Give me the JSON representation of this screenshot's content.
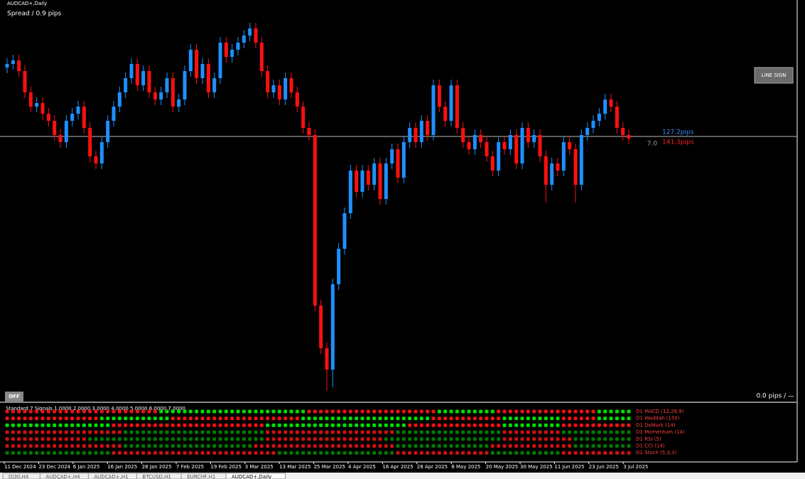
{
  "chart_data": {
    "type": "candlestick",
    "title": "AUDCAD+,Daily",
    "subtitle": "Spread / 0.9 pips",
    "ylim": [
      0.8435,
      0.9
    ],
    "up_color": "#1e90ff",
    "down_color": "#ff1010",
    "hline": 0.8808,
    "hline_labels": [
      "127.2pips",
      "7.0",
      "141.3pips"
    ],
    "button": "LINE SIGN",
    "off_button": "OFF",
    "pips_label": "0.0 pips / —",
    "dates": [
      "11 Dec 2024",
      "23 Dec 2024",
      "6 Jan 2025",
      "16 Jan 2025",
      "28 Jan 2025",
      "7 Feb 2025",
      "19 Feb 2025",
      "3 Mar 2025",
      "13 Mar 2025",
      "25 Mar 2025",
      "4 Apr 2025",
      "16 Apr 2025",
      "28 Apr 2025",
      "8 May 2025",
      "20 May 2025",
      "30 May 2025",
      "11 Jun 2025",
      "23 Jun 2025",
      "3 Jul 2025"
    ],
    "candles": [
      [
        0.8905,
        0.8918,
        0.8897,
        0.891
      ],
      [
        0.891,
        0.8923,
        0.8902,
        0.8915
      ],
      [
        0.8915,
        0.8923,
        0.8892,
        0.89
      ],
      [
        0.89,
        0.8908,
        0.8862,
        0.887
      ],
      [
        0.887,
        0.8878,
        0.8842,
        0.885
      ],
      [
        0.885,
        0.8863,
        0.8842,
        0.8855
      ],
      [
        0.8855,
        0.8863,
        0.8832,
        0.884
      ],
      [
        0.884,
        0.8848,
        0.8822,
        0.883
      ],
      [
        0.883,
        0.8838,
        0.8802,
        0.881
      ],
      [
        0.881,
        0.8818,
        0.8792,
        0.88
      ],
      [
        0.88,
        0.8838,
        0.8792,
        0.883
      ],
      [
        0.883,
        0.8848,
        0.8822,
        0.884
      ],
      [
        0.884,
        0.8858,
        0.8832,
        0.885
      ],
      [
        0.885,
        0.8858,
        0.8812,
        0.882
      ],
      [
        0.882,
        0.8828,
        0.8772,
        0.878
      ],
      [
        0.878,
        0.8788,
        0.8762,
        0.877
      ],
      [
        0.877,
        0.8808,
        0.8762,
        0.88
      ],
      [
        0.88,
        0.8838,
        0.8792,
        0.883
      ],
      [
        0.883,
        0.8858,
        0.8822,
        0.885
      ],
      [
        0.885,
        0.8878,
        0.8842,
        0.887
      ],
      [
        0.887,
        0.8898,
        0.8862,
        0.889
      ],
      [
        0.889,
        0.8918,
        0.8882,
        0.891
      ],
      [
        0.891,
        0.8918,
        0.8872,
        0.888
      ],
      [
        0.888,
        0.8908,
        0.8872,
        0.89
      ],
      [
        0.89,
        0.8908,
        0.8862,
        0.887
      ],
      [
        0.887,
        0.8878,
        0.8852,
        0.886
      ],
      [
        0.886,
        0.8878,
        0.8852,
        0.887
      ],
      [
        0.887,
        0.8898,
        0.8862,
        0.889
      ],
      [
        0.889,
        0.8898,
        0.8842,
        0.885
      ],
      [
        0.885,
        0.8868,
        0.8842,
        0.886
      ],
      [
        0.886,
        0.8908,
        0.8852,
        0.89
      ],
      [
        0.89,
        0.8938,
        0.8892,
        0.893
      ],
      [
        0.893,
        0.8938,
        0.8882,
        0.889
      ],
      [
        0.889,
        0.8918,
        0.8882,
        0.891
      ],
      [
        0.891,
        0.8918,
        0.8862,
        0.887
      ],
      [
        0.887,
        0.8898,
        0.8862,
        0.889
      ],
      [
        0.889,
        0.8948,
        0.8882,
        0.894
      ],
      [
        0.894,
        0.8948,
        0.8912,
        0.892
      ],
      [
        0.892,
        0.8938,
        0.8912,
        0.893
      ],
      [
        0.893,
        0.8948,
        0.8922,
        0.894
      ],
      [
        0.894,
        0.8958,
        0.8932,
        0.895
      ],
      [
        0.895,
        0.8968,
        0.8942,
        0.896
      ],
      [
        0.896,
        0.8968,
        0.8932,
        0.894
      ],
      [
        0.894,
        0.8948,
        0.8892,
        0.89
      ],
      [
        0.89,
        0.8908,
        0.8862,
        0.887
      ],
      [
        0.887,
        0.8888,
        0.8862,
        0.888
      ],
      [
        0.888,
        0.8888,
        0.8852,
        0.886
      ],
      [
        0.886,
        0.8898,
        0.8852,
        0.889
      ],
      [
        0.889,
        0.8898,
        0.8862,
        0.887
      ],
      [
        0.887,
        0.8878,
        0.8842,
        0.885
      ],
      [
        0.885,
        0.8858,
        0.8812,
        0.882
      ],
      [
        0.882,
        0.8828,
        0.8802,
        0.881
      ],
      [
        0.881,
        0.8818,
        0.8562,
        0.857
      ],
      [
        0.857,
        0.8578,
        0.8502,
        0.851
      ],
      [
        0.851,
        0.8518,
        0.845,
        0.848
      ],
      [
        0.848,
        0.8608,
        0.8455,
        0.86
      ],
      [
        0.86,
        0.8658,
        0.8592,
        0.865
      ],
      [
        0.865,
        0.8708,
        0.8642,
        0.87
      ],
      [
        0.87,
        0.8768,
        0.8692,
        0.876
      ],
      [
        0.876,
        0.8768,
        0.8722,
        0.873
      ],
      [
        0.873,
        0.8768,
        0.8722,
        0.876
      ],
      [
        0.876,
        0.8768,
        0.8732,
        0.874
      ],
      [
        0.874,
        0.8778,
        0.8732,
        0.877
      ],
      [
        0.877,
        0.8778,
        0.8712,
        0.872
      ],
      [
        0.872,
        0.8778,
        0.8712,
        0.877
      ],
      [
        0.877,
        0.8798,
        0.8762,
        0.879
      ],
      [
        0.879,
        0.8798,
        0.8742,
        0.875
      ],
      [
        0.875,
        0.8808,
        0.8742,
        0.88
      ],
      [
        0.88,
        0.8828,
        0.8792,
        0.882
      ],
      [
        0.882,
        0.8828,
        0.8792,
        0.88
      ],
      [
        0.88,
        0.8838,
        0.8792,
        0.883
      ],
      [
        0.883,
        0.8838,
        0.8802,
        0.881
      ],
      [
        0.881,
        0.8888,
        0.8802,
        0.888
      ],
      [
        0.888,
        0.8888,
        0.8842,
        0.885
      ],
      [
        0.885,
        0.8858,
        0.8822,
        0.883
      ],
      [
        0.883,
        0.8888,
        0.8822,
        0.888
      ],
      [
        0.888,
        0.8888,
        0.8812,
        0.882
      ],
      [
        0.882,
        0.8828,
        0.8792,
        0.88
      ],
      [
        0.88,
        0.8808,
        0.8782,
        0.879
      ],
      [
        0.879,
        0.8818,
        0.8782,
        0.881
      ],
      [
        0.881,
        0.8818,
        0.8792,
        0.88
      ],
      [
        0.88,
        0.8808,
        0.8772,
        0.878
      ],
      [
        0.878,
        0.8788,
        0.8752,
        0.876
      ],
      [
        0.876,
        0.8808,
        0.8752,
        0.88
      ],
      [
        0.88,
        0.8808,
        0.8782,
        0.879
      ],
      [
        0.879,
        0.8818,
        0.8782,
        0.881
      ],
      [
        0.881,
        0.8818,
        0.8762,
        0.877
      ],
      [
        0.877,
        0.8828,
        0.8762,
        0.882
      ],
      [
        0.882,
        0.8828,
        0.8792,
        0.88
      ],
      [
        0.88,
        0.8818,
        0.8792,
        0.881
      ],
      [
        0.881,
        0.8818,
        0.8772,
        0.878
      ],
      [
        0.878,
        0.8788,
        0.8715,
        0.874
      ],
      [
        0.874,
        0.8778,
        0.8732,
        0.877
      ],
      [
        0.877,
        0.8778,
        0.8752,
        0.876
      ],
      [
        0.876,
        0.8808,
        0.8752,
        0.88
      ],
      [
        0.88,
        0.8808,
        0.8782,
        0.879
      ],
      [
        0.879,
        0.8798,
        0.8715,
        0.874
      ],
      [
        0.874,
        0.8818,
        0.8732,
        0.881
      ],
      [
        0.881,
        0.8828,
        0.8802,
        0.882
      ],
      [
        0.882,
        0.8838,
        0.8812,
        0.883
      ],
      [
        0.883,
        0.8848,
        0.8822,
        0.884
      ],
      [
        0.884,
        0.8868,
        0.8832,
        0.886
      ],
      [
        0.886,
        0.8868,
        0.8842,
        0.885
      ],
      [
        0.885,
        0.8858,
        0.8812,
        0.882
      ],
      [
        0.882,
        0.8828,
        0.8802,
        0.881
      ],
      [
        0.881,
        0.8818,
        0.8797,
        0.8805
      ]
    ],
    "signals": {
      "title": "Standard 7 Signals 1.0000 2.0000 3.0000 4.0000 5.0000 6.0000 7.0000",
      "rows": [
        {
          "label": "D1 MACD (12,26,9)",
          "colors": [
            "#00e000",
            "#ee1111"
          ],
          "runs": [
            [
              1,
              26
            ],
            [
              0,
              25
            ],
            [
              1,
              22
            ],
            [
              0,
              10
            ],
            [
              1,
              17
            ],
            [
              0,
              6
            ]
          ]
        },
        {
          "label": "D1 Waddah (150)",
          "colors": [
            "#00e000",
            "#ee1111"
          ],
          "runs": [
            [
              1,
              16
            ],
            [
              0,
              12
            ],
            [
              1,
              22
            ],
            [
              0,
              22
            ],
            [
              1,
              12
            ],
            [
              0,
              10
            ],
            [
              1,
              6
            ],
            [
              0,
              6
            ]
          ]
        },
        {
          "label": "D1 DeMark (14)",
          "colors": [
            "#00e000",
            "#ee1111"
          ],
          "runs": [
            [
              0,
              18
            ],
            [
              1,
              26
            ],
            [
              0,
              24
            ],
            [
              1,
              16
            ],
            [
              0,
              10
            ],
            [
              1,
              12
            ]
          ]
        },
        {
          "label": "D1 Momentum (14)",
          "colors": [
            "#007a00",
            "#cc1111"
          ],
          "runs": [
            [
              1,
              20
            ],
            [
              0,
              24
            ],
            [
              1,
              22
            ],
            [
              0,
              18
            ],
            [
              1,
              10
            ],
            [
              0,
              12
            ]
          ]
        },
        {
          "label": "D1 RSI (5)",
          "colors": [
            "#007a00",
            "#cc1111"
          ],
          "runs": [
            [
              1,
              14
            ],
            [
              0,
              30
            ],
            [
              1,
              20
            ],
            [
              0,
              20
            ],
            [
              1,
              12
            ],
            [
              0,
              10
            ]
          ]
        },
        {
          "label": "D1 CCI (14)",
          "colors": [
            "#007a00",
            "#cc1111"
          ],
          "runs": [
            [
              1,
              20
            ],
            [
              0,
              22
            ],
            [
              1,
              24
            ],
            [
              0,
              16
            ],
            [
              1,
              14
            ],
            [
              0,
              10
            ]
          ]
        },
        {
          "label": "D1 Stoch (5,3,3)",
          "colors": [
            "#007a00",
            "#cc1111"
          ],
          "runs": [
            [
              0,
              18
            ],
            [
              1,
              28
            ],
            [
              0,
              20
            ],
            [
              1,
              16
            ],
            [
              0,
              12
            ],
            [
              1,
              12
            ]
          ]
        }
      ]
    },
    "tabs": [
      "DJ30,H4",
      "AUDCAD+,H4",
      "AUDCAD+,H1",
      "BTCUSD,H1",
      "EURCHF,H1",
      "AUDCAD+,Daily"
    ]
  }
}
